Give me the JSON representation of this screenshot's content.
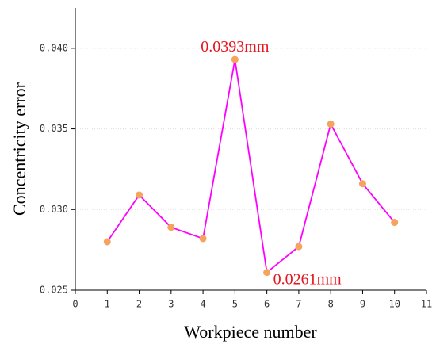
{
  "chart_data": {
    "type": "line",
    "x_label": "Workpiece number",
    "y_label": "Concentricity error",
    "x": [
      1,
      2,
      3,
      4,
      5,
      6,
      7,
      8,
      9,
      10
    ],
    "series": [
      {
        "color": "#ff00ff",
        "marker_color": "#f5a45d",
        "values": [
          0.028,
          0.0309,
          0.0289,
          0.0282,
          0.0393,
          0.0261,
          0.0277,
          0.0353,
          0.0316,
          0.0292
        ],
        "value_labels": [
          null,
          null,
          null,
          null,
          "0.0393mm",
          "0.0261mm",
          null,
          null,
          null,
          null
        ],
        "value_label_color": "#e8141c"
      }
    ],
    "xlim": [
      0,
      11
    ],
    "xticks": [
      0,
      1,
      2,
      3,
      4,
      5,
      6,
      7,
      8,
      9,
      10,
      11
    ],
    "ylim": [
      0.025,
      0.0425
    ],
    "yticks": [
      {
        "value": 0.025,
        "label": "0.025"
      },
      {
        "value": 0.03,
        "label": "0.030"
      },
      {
        "value": 0.035,
        "label": "0.035"
      },
      {
        "value": 0.04,
        "label": "0.040"
      }
    ],
    "grid": true
  }
}
